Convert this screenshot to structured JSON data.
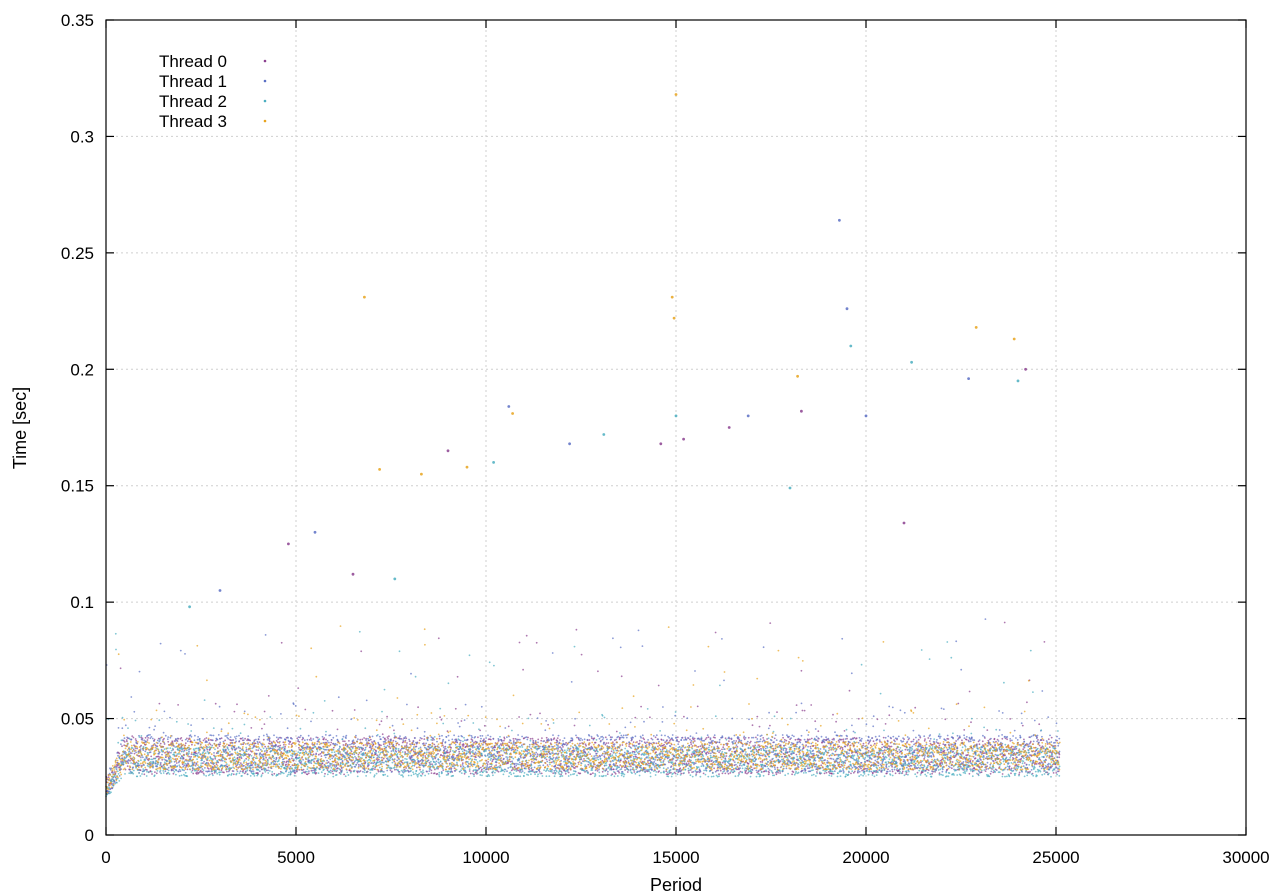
{
  "chart_data": {
    "type": "scatter",
    "title": "",
    "xlabel": "Period",
    "ylabel": "Time [sec]",
    "xlim": [
      0,
      30000
    ],
    "ylim": [
      0,
      0.35
    ],
    "xticks": [
      "0",
      "5000",
      "10000",
      "15000",
      "20000",
      "25000",
      "30000"
    ],
    "yticks": [
      "0",
      "0.05",
      "0.1",
      "0.15",
      "0.2",
      "0.25",
      "0.3",
      "0.35"
    ],
    "grid": true,
    "legend_position": "top-left",
    "series": [
      {
        "name": "Thread 0",
        "color": "#8b3f8f",
        "x_range": [
          0,
          25100
        ],
        "typical_band": [
          0.026,
          0.042
        ],
        "outliers": [
          {
            "x": 4800,
            "y": 0.125
          },
          {
            "x": 6500,
            "y": 0.112
          },
          {
            "x": 9000,
            "y": 0.165
          },
          {
            "x": 14600,
            "y": 0.168
          },
          {
            "x": 15200,
            "y": 0.17
          },
          {
            "x": 16400,
            "y": 0.175
          },
          {
            "x": 18300,
            "y": 0.182
          },
          {
            "x": 21000,
            "y": 0.134
          },
          {
            "x": 24200,
            "y": 0.2
          }
        ]
      },
      {
        "name": "Thread 1",
        "color": "#5a6fc4",
        "x_range": [
          0,
          25100
        ],
        "typical_band": [
          0.027,
          0.043
        ],
        "outliers": [
          {
            "x": 3000,
            "y": 0.105
          },
          {
            "x": 5500,
            "y": 0.13
          },
          {
            "x": 10600,
            "y": 0.184
          },
          {
            "x": 12200,
            "y": 0.168
          },
          {
            "x": 16900,
            "y": 0.18
          },
          {
            "x": 19300,
            "y": 0.264
          },
          {
            "x": 19500,
            "y": 0.226
          },
          {
            "x": 20000,
            "y": 0.18
          },
          {
            "x": 22700,
            "y": 0.196
          }
        ]
      },
      {
        "name": "Thread 2",
        "color": "#4aaec0",
        "x_range": [
          0,
          25100
        ],
        "typical_band": [
          0.025,
          0.038
        ],
        "outliers": [
          {
            "x": 2200,
            "y": 0.098
          },
          {
            "x": 7600,
            "y": 0.11
          },
          {
            "x": 10200,
            "y": 0.16
          },
          {
            "x": 13100,
            "y": 0.172
          },
          {
            "x": 15000,
            "y": 0.18
          },
          {
            "x": 18000,
            "y": 0.149
          },
          {
            "x": 19600,
            "y": 0.21
          },
          {
            "x": 21200,
            "y": 0.203
          },
          {
            "x": 24000,
            "y": 0.195
          }
        ]
      },
      {
        "name": "Thread 3",
        "color": "#e8a31c",
        "x_range": [
          0,
          25100
        ],
        "typical_band": [
          0.028,
          0.04
        ],
        "outliers": [
          {
            "x": 6800,
            "y": 0.231
          },
          {
            "x": 7200,
            "y": 0.157
          },
          {
            "x": 8300,
            "y": 0.155
          },
          {
            "x": 9500,
            "y": 0.158
          },
          {
            "x": 10700,
            "y": 0.181
          },
          {
            "x": 14900,
            "y": 0.231
          },
          {
            "x": 14950,
            "y": 0.222
          },
          {
            "x": 15000,
            "y": 0.318
          },
          {
            "x": 18200,
            "y": 0.197
          },
          {
            "x": 22900,
            "y": 0.218
          },
          {
            "x": 23900,
            "y": 0.213
          }
        ]
      }
    ]
  }
}
